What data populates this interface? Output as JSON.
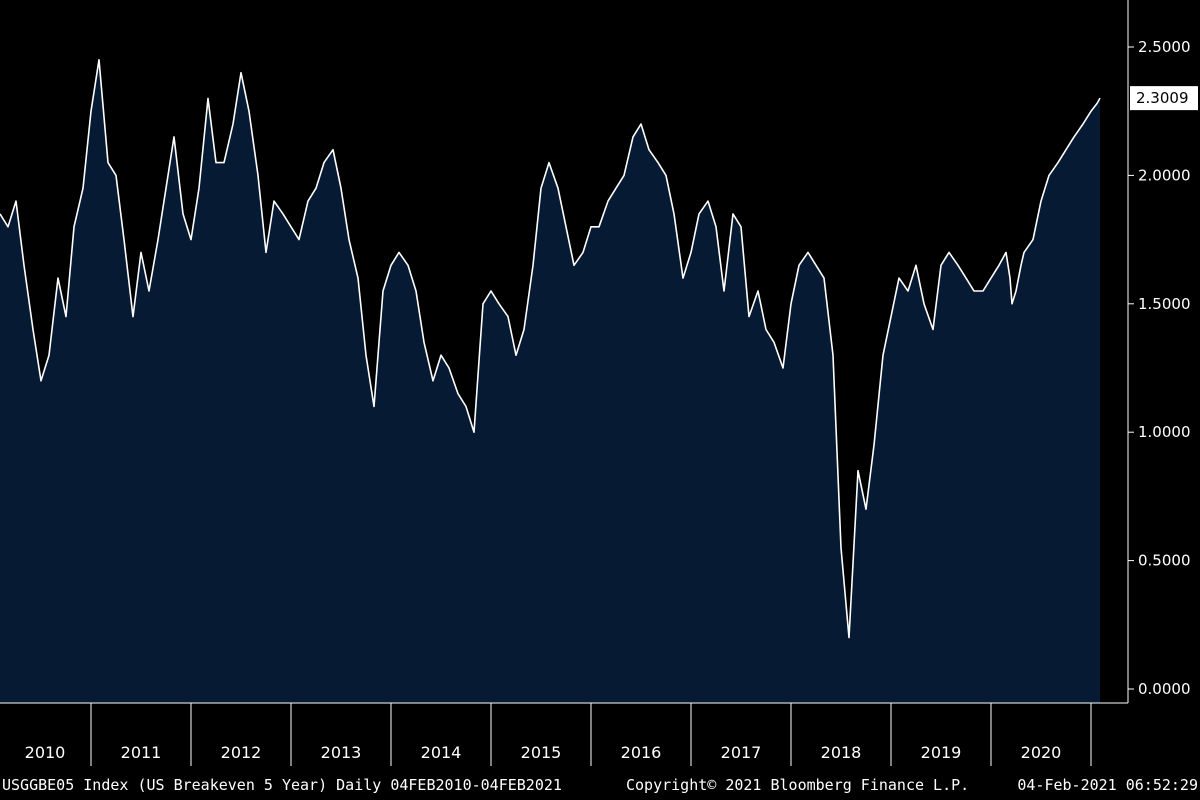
{
  "chart_data": {
    "type": "area",
    "title": "",
    "xlabel": "",
    "ylabel": "",
    "ylim": [
      0,
      2.75
    ],
    "xlim": [
      2010.09,
      2021.09
    ],
    "yticks": [
      "0.0000",
      "0.5000",
      "1.0000",
      "1.5000",
      "2.0000",
      "2.5000"
    ],
    "ytick_values": [
      0,
      0.5,
      1.0,
      1.5,
      2.0,
      2.5
    ],
    "xticks": [
      "2010",
      "2011",
      "2012",
      "2013",
      "2014",
      "2015",
      "2016",
      "2017",
      "2018",
      "2019",
      "2020"
    ],
    "last_value_label": "2.3009",
    "grid": false,
    "colors": {
      "background": "#000000",
      "area_fill": "#061a33",
      "line": "#ffffff",
      "axis": "#ffffff",
      "last_label_bg": "#ffffff"
    },
    "series": [
      {
        "x": [
          2010.09,
          2010.17,
          2010.25,
          2010.33,
          2010.42,
          2010.5,
          2010.58,
          2010.67,
          2010.75,
          2010.83,
          2010.92,
          2011.0,
          2011.08,
          2011.17,
          2011.25,
          2011.33,
          2011.42,
          2011.5,
          2011.58,
          2011.67,
          2011.75,
          2011.83,
          2011.92,
          2012.0,
          2012.08,
          2012.17,
          2012.25,
          2012.33,
          2012.42,
          2012.5,
          2012.58,
          2012.67,
          2012.75,
          2012.83,
          2012.92,
          2013.0,
          2013.08,
          2013.17,
          2013.25,
          2013.33,
          2013.42,
          2013.5,
          2013.58,
          2013.67,
          2013.75,
          2013.83,
          2013.92,
          2014.0,
          2014.08,
          2014.17,
          2014.25,
          2014.33,
          2014.42,
          2014.5,
          2014.58,
          2014.67,
          2014.75,
          2014.83,
          2014.92,
          2015.0,
          2015.08,
          2015.17,
          2015.25,
          2015.33,
          2015.42,
          2015.5,
          2015.58,
          2015.67,
          2015.75,
          2015.83,
          2015.92,
          2016.0,
          2016.08,
          2016.17,
          2016.25,
          2016.33,
          2016.42,
          2016.5,
          2016.58,
          2016.67,
          2016.75,
          2016.83,
          2016.92,
          2017.0,
          2017.08,
          2017.17,
          2017.25,
          2017.33,
          2017.42,
          2017.5,
          2017.58,
          2017.67,
          2017.75,
          2017.83,
          2017.92,
          2018.0,
          2018.08,
          2018.17,
          2018.25,
          2018.33,
          2018.42,
          2018.5,
          2018.58,
          2018.67,
          2018.75,
          2018.83,
          2018.92,
          2019.0,
          2019.08,
          2019.17,
          2019.25,
          2019.33,
          2019.42,
          2019.5,
          2019.58,
          2019.67,
          2019.75,
          2019.83,
          2019.92,
          2020.0,
          2020.08,
          2020.15,
          2020.19,
          2020.21,
          2020.25,
          2020.3,
          2020.33,
          2020.42,
          2020.5,
          2020.58,
          2020.67,
          2020.75,
          2020.83,
          2020.92,
          2021.0,
          2021.06,
          2021.09
        ],
        "y": [
          1.85,
          1.8,
          1.9,
          1.65,
          1.4,
          1.2,
          1.3,
          1.6,
          1.45,
          1.8,
          1.95,
          2.25,
          2.45,
          2.05,
          2.0,
          1.75,
          1.45,
          1.7,
          1.55,
          1.75,
          1.95,
          2.15,
          1.85,
          1.75,
          1.95,
          2.3,
          2.05,
          2.05,
          2.2,
          2.4,
          2.25,
          2.0,
          1.7,
          1.9,
          1.85,
          1.8,
          1.75,
          1.9,
          1.95,
          2.05,
          2.1,
          1.95,
          1.75,
          1.6,
          1.3,
          1.1,
          1.55,
          1.65,
          1.7,
          1.65,
          1.55,
          1.35,
          1.2,
          1.3,
          1.25,
          1.15,
          1.1,
          1.0,
          1.5,
          1.55,
          1.5,
          1.45,
          1.3,
          1.4,
          1.65,
          1.95,
          2.05,
          1.95,
          1.8,
          1.65,
          1.7,
          1.8,
          1.8,
          1.9,
          1.95,
          2.0,
          2.15,
          2.2,
          2.1,
          2.05,
          2.0,
          1.85,
          1.6,
          1.7,
          1.85,
          1.9,
          1.8,
          1.55,
          1.85,
          1.8,
          1.45,
          1.55,
          1.4,
          1.35,
          1.25,
          1.5,
          1.65,
          1.7,
          1.65,
          1.6,
          1.3,
          0.55,
          0.2,
          0.85,
          0.7,
          0.95,
          1.3,
          1.45,
          1.6,
          1.55,
          1.65,
          1.5,
          1.4,
          1.65,
          1.7,
          1.65,
          1.6,
          1.55,
          1.55,
          1.6,
          1.65,
          1.7,
          1.6,
          1.5,
          1.55,
          1.65,
          1.7,
          1.75,
          1.9,
          2.0,
          2.05,
          2.1,
          2.15,
          2.2,
          2.25,
          2.28,
          2.3009
        ]
      }
    ]
  },
  "footer": {
    "left": "USGGBE05 Index (US Breakeven 5 Year)  Daily 04FEB2010-04FEB2021",
    "center": "Copyright© 2021 Bloomberg Finance L.P.",
    "right": "04-Feb-2021 06:52:29"
  }
}
